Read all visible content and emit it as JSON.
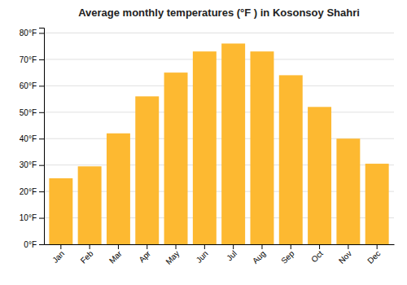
{
  "chart_data": {
    "type": "bar",
    "title": "Average monthly temperatures (°F ) in Kosonsoy Shahri",
    "categories": [
      "Jan",
      "Feb",
      "Mar",
      "Apr",
      "May",
      "Jun",
      "Jul",
      "Aug",
      "Sep",
      "Oct",
      "Nov",
      "Dec"
    ],
    "values": [
      25,
      29.5,
      42,
      56,
      65,
      73,
      76,
      73,
      64,
      52,
      40,
      30.5
    ],
    "color": "#FDB931",
    "ylim": [
      0,
      82
    ],
    "yticks": [
      {
        "value": 0,
        "label": "0°F"
      },
      {
        "value": 10,
        "label": "10°F"
      },
      {
        "value": 20,
        "label": "20°F"
      },
      {
        "value": 30,
        "label": "30°F"
      },
      {
        "value": 40,
        "label": "40°F"
      },
      {
        "value": 50,
        "label": "50°F"
      },
      {
        "value": 60,
        "label": "60°F"
      },
      {
        "value": 70,
        "label": "70°F"
      },
      {
        "value": 80,
        "label": "80°F"
      }
    ],
    "grid": true
  }
}
